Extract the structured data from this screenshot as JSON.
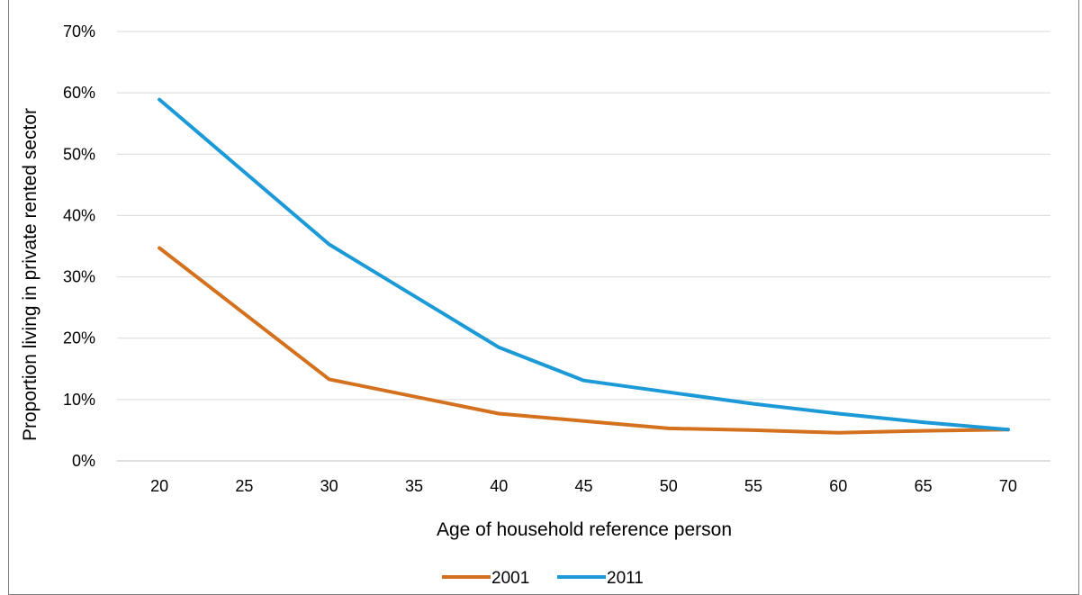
{
  "chart_data": {
    "type": "line",
    "title": "",
    "xlabel": "Age of household reference person",
    "ylabel": "Proportion living in private rented sector",
    "x": [
      20,
      25,
      30,
      35,
      40,
      45,
      50,
      55,
      60,
      65,
      70
    ],
    "x_ticks": [
      "20",
      "25",
      "30",
      "35",
      "40",
      "45",
      "50",
      "55",
      "60",
      "65",
      "70"
    ],
    "y_ticks": [
      "0%",
      "10%",
      "20%",
      "30%",
      "40%",
      "50%",
      "60%",
      "70%"
    ],
    "ylim": [
      0,
      0.7
    ],
    "grid": "horizontal",
    "legend_position": "bottom",
    "series": [
      {
        "name": "2001",
        "color": "#d4711f",
        "points": [
          [
            20,
            0.347
          ],
          [
            30,
            0.133
          ],
          [
            40,
            0.077
          ],
          [
            45,
            0.065
          ],
          [
            50,
            0.053
          ],
          [
            55,
            0.05
          ],
          [
            60,
            0.046
          ],
          [
            65,
            0.049
          ],
          [
            70,
            0.051
          ]
        ]
      },
      {
        "name": "2011",
        "color": "#1b9ad7",
        "points": [
          [
            20,
            0.589
          ],
          [
            30,
            0.353
          ],
          [
            40,
            0.185
          ],
          [
            45,
            0.131
          ],
          [
            50,
            0.112
          ],
          [
            55,
            0.093
          ],
          [
            60,
            0.077
          ],
          [
            65,
            0.063
          ],
          [
            70,
            0.051
          ]
        ]
      }
    ]
  }
}
